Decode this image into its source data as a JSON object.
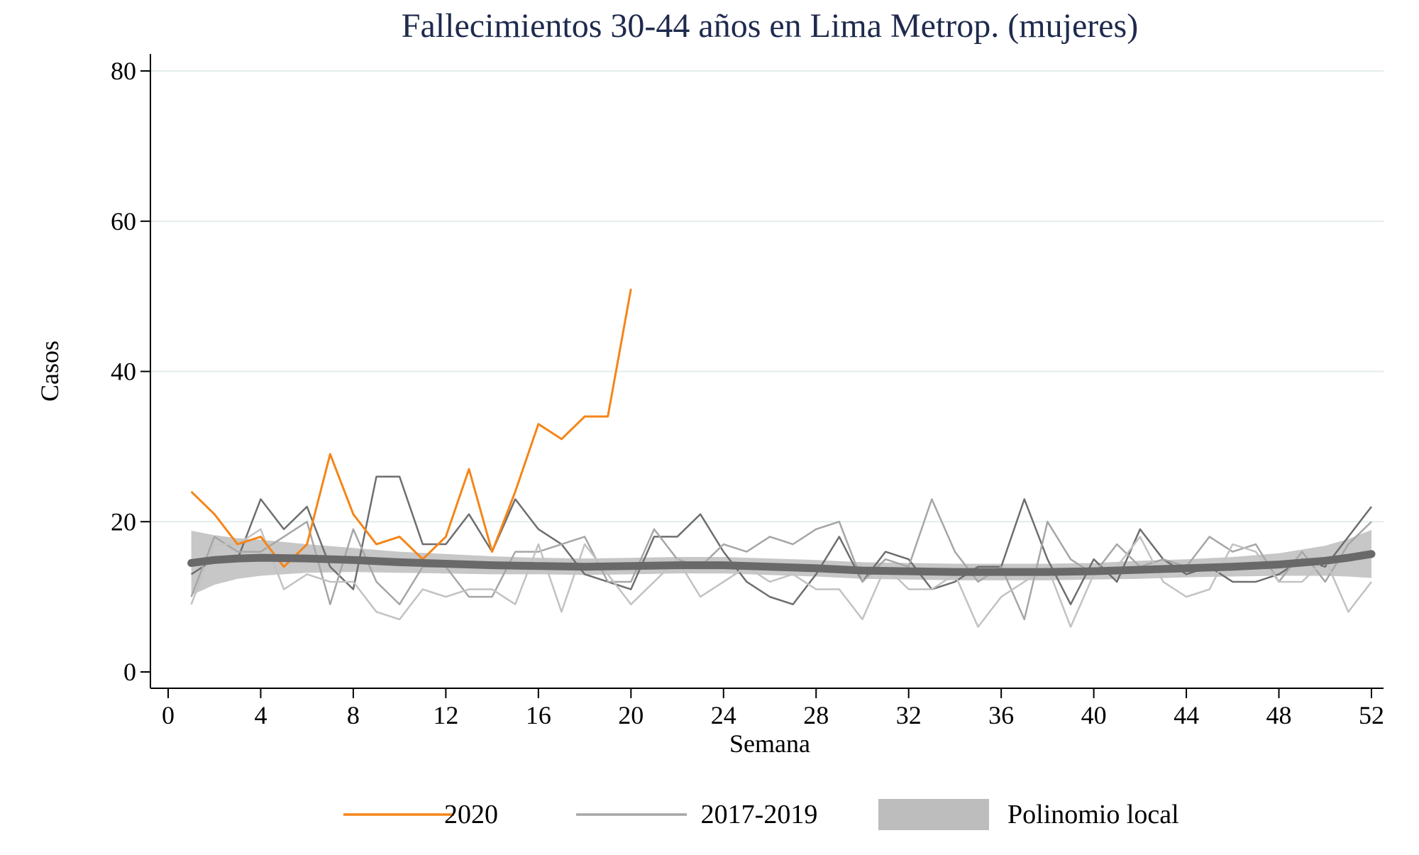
{
  "chart_data": {
    "type": "line",
    "title": "Fallecimientos 30-44 años en Lima Metrop. (mujeres)",
    "xlabel": "Semana",
    "ylabel": "Casos",
    "xlim": [
      0,
      52
    ],
    "ylim": [
      0,
      80
    ],
    "xticks": [
      0,
      4,
      8,
      12,
      16,
      20,
      24,
      28,
      32,
      36,
      40,
      44,
      48,
      52
    ],
    "yticks": [
      0,
      20,
      40,
      60,
      80
    ],
    "grid": "horizontal",
    "legend_position": "bottom",
    "legend": [
      {
        "label": "2020",
        "kind": "line",
        "color": "#f58518"
      },
      {
        "label": "2017-2019",
        "kind": "line",
        "color": "#a6a6a6"
      },
      {
        "label": "Polinomio local",
        "kind": "band",
        "color": "#bdbdbd"
      }
    ],
    "series": [
      {
        "name": "2020",
        "color": "#f58518",
        "x": [
          1,
          2,
          3,
          4,
          5,
          6,
          7,
          8,
          9,
          10,
          11,
          12,
          13,
          14,
          15,
          16,
          17,
          18,
          19,
          20
        ],
        "values": [
          24,
          21,
          17,
          18,
          14,
          17,
          29,
          21,
          17,
          18,
          15,
          18,
          27,
          16,
          24,
          33,
          31,
          34,
          34,
          51
        ]
      },
      {
        "color": "#6e6e6e",
        "x": [
          1,
          2,
          3,
          4,
          5,
          6,
          7,
          8,
          9,
          10,
          11,
          12,
          13,
          14,
          15,
          16,
          17,
          18,
          19,
          20,
          21,
          22,
          23,
          24,
          25,
          26,
          27,
          28,
          29,
          30,
          31,
          32,
          33,
          34,
          35,
          36,
          37,
          38,
          39,
          40,
          41,
          42,
          43,
          44,
          45,
          46,
          47,
          48,
          49,
          50,
          51,
          52
        ],
        "values": [
          13,
          15,
          15,
          23,
          19,
          22,
          14,
          11,
          26,
          26,
          17,
          17,
          21,
          16,
          23,
          19,
          17,
          13,
          12,
          11,
          18,
          18,
          21,
          16,
          12,
          10,
          9,
          13,
          18,
          12,
          16,
          15,
          11,
          12,
          14,
          14,
          23,
          15,
          9,
          15,
          12,
          19,
          15,
          13,
          14,
          12,
          12,
          13,
          15,
          14,
          18,
          22
        ]
      },
      {
        "color": "#a6a6a6",
        "x": [
          1,
          2,
          3,
          4,
          5,
          6,
          7,
          8,
          9,
          10,
          11,
          12,
          13,
          14,
          15,
          16,
          17,
          18,
          19,
          20,
          21,
          22,
          23,
          24,
          25,
          26,
          27,
          28,
          29,
          30,
          31,
          32,
          33,
          34,
          35,
          36,
          37,
          38,
          39,
          40,
          41,
          42,
          43,
          44,
          45,
          46,
          47,
          48,
          49,
          50,
          51,
          52
        ],
        "values": [
          10,
          18,
          16,
          16,
          18,
          20,
          9,
          19,
          12,
          9,
          14,
          14,
          10,
          10,
          16,
          16,
          17,
          18,
          12,
          12,
          19,
          15,
          14,
          17,
          16,
          18,
          17,
          19,
          20,
          12,
          15,
          14,
          23,
          16,
          12,
          14,
          7,
          20,
          15,
          13,
          17,
          14,
          15,
          14,
          18,
          16,
          17,
          12,
          16,
          12,
          17,
          20
        ]
      },
      {
        "color": "#c2c2c2",
        "x": [
          1,
          2,
          3,
          4,
          5,
          6,
          7,
          8,
          9,
          10,
          11,
          12,
          13,
          14,
          15,
          16,
          17,
          18,
          19,
          20,
          21,
          22,
          23,
          24,
          25,
          26,
          27,
          28,
          29,
          30,
          31,
          32,
          33,
          34,
          35,
          36,
          37,
          38,
          39,
          40,
          41,
          42,
          43,
          44,
          45,
          46,
          47,
          48,
          49,
          50,
          51,
          52
        ],
        "values": [
          9,
          17,
          17,
          19,
          11,
          13,
          12,
          12,
          8,
          7,
          11,
          10,
          11,
          11,
          9,
          17,
          8,
          17,
          13,
          9,
          12,
          15,
          10,
          12,
          14,
          12,
          13,
          11,
          11,
          7,
          14,
          11,
          11,
          13,
          6,
          10,
          12,
          14,
          6,
          13,
          14,
          18,
          12,
          10,
          11,
          17,
          16,
          12,
          12,
          15,
          8,
          12
        ]
      }
    ],
    "local_polynomial": {
      "name": "Polinomio local",
      "x": [
        1,
        2,
        3,
        4,
        6,
        8,
        10,
        12,
        14,
        16,
        18,
        20,
        22,
        24,
        26,
        28,
        30,
        32,
        34,
        36,
        38,
        40,
        42,
        44,
        46,
        48,
        50,
        51,
        52
      ],
      "fit": [
        14.5,
        14.9,
        15.1,
        15.2,
        15.1,
        14.9,
        14.6,
        14.4,
        14.2,
        14.1,
        14.0,
        14.1,
        14.2,
        14.2,
        14.0,
        13.8,
        13.5,
        13.4,
        13.3,
        13.3,
        13.3,
        13.4,
        13.6,
        13.8,
        14.0,
        14.3,
        14.8,
        15.2,
        15.7
      ],
      "lower": [
        10.2,
        11.6,
        12.4,
        12.8,
        13.2,
        13.3,
        13.2,
        13.1,
        13.0,
        13.0,
        12.9,
        13.0,
        13.1,
        13.1,
        12.9,
        12.7,
        12.4,
        12.3,
        12.2,
        12.2,
        12.2,
        12.3,
        12.4,
        12.6,
        12.7,
        12.8,
        12.8,
        12.7,
        12.5
      ],
      "upper": [
        18.8,
        18.2,
        17.8,
        17.6,
        17.0,
        16.5,
        16.0,
        15.7,
        15.4,
        15.2,
        15.1,
        15.2,
        15.3,
        15.3,
        15.1,
        14.9,
        14.6,
        14.5,
        14.4,
        14.4,
        14.4,
        14.5,
        14.8,
        15.0,
        15.3,
        15.8,
        16.8,
        17.7,
        18.9
      ]
    }
  }
}
